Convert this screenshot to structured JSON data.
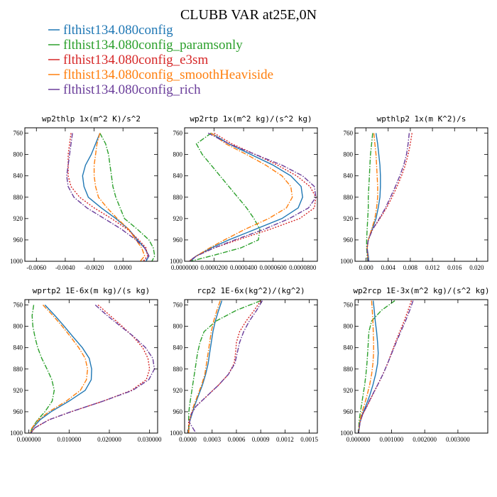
{
  "figure": {
    "title": "CLUBB VAR at25E,0N"
  },
  "legend": [
    {
      "label": "flthist134.080config",
      "color": "#1f77b4",
      "dash": "solid"
    },
    {
      "label": "flthist134.080config_paramsonly",
      "color": "#2ca02c",
      "dash": "dashdot"
    },
    {
      "label": "flthist134.080config_e3sm",
      "color": "#d62728",
      "dash": "dot"
    },
    {
      "label": "flthist134.080config_smoothHeaviside",
      "color": "#ff7f0e",
      "dash": "dashdot"
    },
    {
      "label": "flthist134.080config_rich",
      "color": "#6a3d9a",
      "dash": "dashdot"
    }
  ],
  "chart_data": [
    {
      "type": "line",
      "title": "wp2thlp  1x(m^2 K)/s^2",
      "xlim": [
        -0.0068,
        0.0024
      ],
      "ylim": [
        1000,
        750
      ],
      "xticks": [
        -0.006,
        -0.004,
        -0.002,
        0.0
      ],
      "xtick_labels": [
        "-0.0060",
        "-0.0040",
        "-0.0020",
        "0.0000"
      ],
      "yticks": [
        760,
        800,
        840,
        880,
        920,
        960,
        1000
      ],
      "y": [
        760,
        780,
        800,
        820,
        840,
        860,
        880,
        900,
        920,
        940,
        960,
        975,
        990,
        1000
      ],
      "series": [
        {
          "values": [
            -0.0016,
            -0.0019,
            -0.0022,
            -0.0026,
            -0.0028,
            -0.0027,
            -0.0024,
            -0.0015,
            -0.0005,
            0.0004,
            0.001,
            0.0015,
            0.0018,
            0.0016
          ]
        },
        {
          "values": [
            -0.0016,
            -0.0012,
            -0.001,
            -0.0009,
            -0.0008,
            -0.0007,
            -0.0005,
            -0.0002,
            0.0001,
            0.001,
            0.0018,
            0.0021,
            0.0022,
            0.002
          ]
        },
        {
          "values": [
            -0.0036,
            -0.0037,
            -0.0038,
            -0.0038,
            -0.0038,
            -0.0036,
            -0.003,
            -0.002,
            -0.0008,
            0.0003,
            0.0011,
            0.0016,
            0.0017,
            0.0014
          ]
        },
        {
          "values": [
            -0.0016,
            -0.0018,
            -0.0019,
            -0.002,
            -0.002,
            -0.0019,
            -0.0017,
            -0.0011,
            -0.0004,
            0.0004,
            0.0009,
            0.0013,
            0.0015,
            0.0012
          ]
        },
        {
          "values": [
            -0.0035,
            -0.0036,
            -0.0037,
            -0.0038,
            -0.0039,
            -0.0038,
            -0.0034,
            -0.0025,
            -0.0013,
            -0.0001,
            0.0009,
            0.0015,
            0.0018,
            0.0015
          ]
        }
      ]
    },
    {
      "type": "line",
      "title": "wp2rtp  1x(m^2 kg)/(s^2 kg)",
      "xlim": [
        0,
        9e-05
      ],
      "ylim": [
        1000,
        750
      ],
      "xticks": [
        0,
        2e-05,
        4e-05,
        6e-05,
        8e-05
      ],
      "xtick_labels": [
        "0.0000000",
        "0.0000200",
        "0.0000400",
        "0.0000600",
        "0.0000800"
      ],
      "yticks": [
        760,
        800,
        840,
        880,
        920,
        960,
        1000
      ],
      "y": [
        760,
        780,
        800,
        820,
        840,
        860,
        880,
        900,
        920,
        940,
        960,
        975,
        990,
        1000
      ],
      "series": [
        {
          "values": [
            1.8e-05,
            3e-05,
            4.5e-05,
            6e-05,
            7.2e-05,
            7.9e-05,
            8e-05,
            7.7e-05,
            6.6e-05,
            4.8e-05,
            3e-05,
            1.8e-05,
            8e-06,
            4e-06
          ]
        },
        {
          "values": [
            1.8e-05,
            8e-06,
            1.2e-05,
            1.8e-05,
            2.4e-05,
            3e-05,
            3.6e-05,
            4.2e-05,
            4.7e-05,
            5.1e-05,
            5e-05,
            3.8e-05,
            1.8e-05,
            4e-06
          ]
        },
        {
          "values": [
            2e-05,
            3.2e-05,
            4.8e-05,
            6.3e-05,
            7.6e-05,
            8.5e-05,
            8.9e-05,
            8.8e-05,
            7.8e-05,
            5.8e-05,
            3.6e-05,
            2e-05,
            8e-06,
            3e-06
          ]
        },
        {
          "values": [
            1.8e-05,
            2.8e-05,
            4.2e-05,
            5.5e-05,
            6.6e-05,
            7.2e-05,
            7.3e-05,
            6.9e-05,
            5.7e-05,
            4.1e-05,
            2.7e-05,
            1.7e-05,
            8e-06,
            3e-06
          ]
        },
        {
          "values": [
            1.6e-05,
            3e-05,
            4.8e-05,
            6.6e-05,
            8e-05,
            8.8e-05,
            8.9e-05,
            8.4e-05,
            7.1e-05,
            5.4e-05,
            3.4e-05,
            2e-05,
            8e-06,
            3e-06
          ]
        }
      ]
    },
    {
      "type": "line",
      "title": "wpthlp2  1x(m K^2)/s",
      "xlim": [
        -0.002,
        0.022
      ],
      "ylim": [
        1000,
        750
      ],
      "xticks": [
        0,
        0.004,
        0.008,
        0.012,
        0.016,
        0.02
      ],
      "xtick_labels": [
        "0.000",
        "0.004",
        "0.008",
        "0.012",
        "0.016",
        "0.020"
      ],
      "yticks": [
        760,
        800,
        840,
        880,
        920,
        960,
        1000
      ],
      "y": [
        760,
        780,
        800,
        820,
        840,
        860,
        880,
        900,
        920,
        940,
        960,
        975,
        990,
        1000
      ],
      "series": [
        {
          "values": [
            0.0018,
            0.0021,
            0.0023,
            0.0025,
            0.0026,
            0.0026,
            0.0025,
            0.0022,
            0.0018,
            0.0011,
            0.0004,
            0.0002,
            0.0004,
            0.0005
          ]
        },
        {
          "values": [
            0.0012,
            0.001,
            0.0008,
            0.0007,
            0.0006,
            0.0005,
            0.0004,
            0.0004,
            0.0003,
            0.0002,
            0.0001,
            0.0001,
            0.0002,
            0.0003
          ]
        },
        {
          "values": [
            0.0083,
            0.008,
            0.0076,
            0.0071,
            0.0064,
            0.0056,
            0.0047,
            0.0037,
            0.0025,
            0.0012,
            0.0004,
            0.0002,
            0.0003,
            0.0004
          ]
        },
        {
          "values": [
            0.0014,
            0.0016,
            0.0018,
            0.0019,
            0.002,
            0.0021,
            0.0021,
            0.0019,
            0.0016,
            0.001,
            0.0004,
            0.0002,
            0.0003,
            0.0004
          ]
        },
        {
          "values": [
            0.0078,
            0.0076,
            0.0073,
            0.0068,
            0.0061,
            0.0053,
            0.0044,
            0.0035,
            0.0024,
            0.0012,
            0.0004,
            0.0002,
            0.0003,
            0.0004
          ]
        }
      ]
    },
    {
      "type": "line",
      "title": "wprtp2  1E-6x(m kg)/(s kg)",
      "xlim": [
        -0.001,
        0.032
      ],
      "ylim": [
        1000,
        750
      ],
      "xticks": [
        0,
        0.01,
        0.02,
        0.03
      ],
      "xtick_labels": [
        "0.000000",
        "0.010000",
        "0.020000",
        "0.030000"
      ],
      "yticks": [
        760,
        800,
        840,
        880,
        920,
        960,
        1000
      ],
      "y": [
        760,
        780,
        800,
        820,
        840,
        860,
        880,
        900,
        920,
        940,
        960,
        975,
        990,
        1000
      ],
      "series": [
        {
          "values": [
            0.004,
            0.0065,
            0.0088,
            0.011,
            0.0133,
            0.015,
            0.0156,
            0.0155,
            0.014,
            0.01,
            0.0055,
            0.0028,
            0.001,
            0.0005
          ]
        },
        {
          "values": [
            0.0012,
            0.0008,
            0.001,
            0.0015,
            0.0022,
            0.0032,
            0.0045,
            0.0057,
            0.0063,
            0.0058,
            0.004,
            0.0022,
            0.0008,
            0.0004
          ]
        },
        {
          "values": [
            0.0172,
            0.0202,
            0.0232,
            0.026,
            0.0283,
            0.0296,
            0.03,
            0.0292,
            0.0255,
            0.0185,
            0.0105,
            0.005,
            0.0015,
            0.0005
          ]
        },
        {
          "values": [
            0.0035,
            0.006,
            0.0083,
            0.0104,
            0.0124,
            0.014,
            0.0146,
            0.0143,
            0.0128,
            0.0093,
            0.005,
            0.0024,
            0.0008,
            0.0003
          ]
        },
        {
          "values": [
            0.0165,
            0.0195,
            0.0228,
            0.0262,
            0.029,
            0.0308,
            0.0312,
            0.0298,
            0.0258,
            0.0185,
            0.0105,
            0.005,
            0.0015,
            0.0005
          ]
        }
      ]
    },
    {
      "type": "line",
      "title": "rcp2  1E-6x(kg^2)/(kg^2)",
      "xlim": [
        -4e-05,
        0.0016
      ],
      "ylim": [
        1000,
        750
      ],
      "xticks": [
        0,
        0.0003,
        0.0006,
        0.0009,
        0.0012,
        0.0015
      ],
      "xtick_labels": [
        "0.0000",
        "0.0003",
        "0.0006",
        "0.0009",
        "0.0012",
        "0.0015"
      ],
      "yticks": [
        760,
        800,
        840,
        880,
        920,
        960,
        1000
      ],
      "y": [
        752,
        770,
        790,
        810,
        830,
        850,
        870,
        890,
        910,
        930,
        950,
        965,
        980,
        1000
      ],
      "series": [
        {
          "values": [
            0.00042,
            0.00038,
            0.00034,
            0.00031,
            0.00029,
            0.00027,
            0.00025,
            0.00022,
            0.00018,
            0.00013,
            8e-05,
            5e-05,
            2e-05,
            1e-05
          ]
        },
        {
          "values": [
            0.0009,
            0.0006,
            0.00035,
            0.0002,
            0.00015,
            0.00012,
            0.0001,
            8e-05,
            6e-05,
            4e-05,
            2e-05,
            1e-05,
            1e-05,
            1e-05
          ]
        },
        {
          "values": [
            0.0009,
            0.00082,
            0.00072,
            0.00064,
            0.0006,
            0.00059,
            0.00057,
            0.0005,
            0.00038,
            0.00024,
            0.0001,
            4e-05,
            1e-05,
            1e-05
          ]
        },
        {
          "values": [
            0.0004,
            0.00036,
            0.00032,
            0.00029,
            0.00027,
            0.00025,
            0.00023,
            0.00021,
            0.00017,
            0.00012,
            7e-05,
            4e-05,
            2e-05,
            1e-05
          ]
        },
        {
          "values": [
            0.00092,
            0.00085,
            0.00076,
            0.00069,
            0.00064,
            0.00061,
            0.00058,
            0.0005,
            0.00038,
            0.00024,
            0.0001,
            4e-05,
            2e-05,
            0.0001
          ]
        }
      ]
    },
    {
      "type": "line",
      "title": "wp2rcp  1E-3x(m^2 kg)/(s^2 kg)",
      "xlim": [
        -0.0001,
        0.0039
      ],
      "ylim": [
        1000,
        750
      ],
      "xticks": [
        0,
        0.001,
        0.002,
        0.003
      ],
      "xtick_labels": [
        "0.000000",
        "0.001000",
        "0.002000",
        "0.003000"
      ],
      "yticks": [
        760,
        800,
        840,
        880,
        920,
        960,
        1000
      ],
      "y": [
        752,
        770,
        790,
        810,
        830,
        850,
        870,
        890,
        910,
        930,
        950,
        965,
        980,
        1000
      ],
      "series": [
        {
          "values": [
            0.00045,
            0.00048,
            0.00051,
            0.00055,
            0.00058,
            0.0006,
            0.00058,
            0.00052,
            0.00044,
            0.00034,
            0.00022,
            0.00012,
            5e-05,
            1e-05
          ]
        },
        {
          "values": [
            0.0011,
            0.0007,
            0.0004,
            0.00032,
            0.0003,
            0.00028,
            0.00026,
            0.00023,
            0.00019,
            0.00014,
            9e-05,
            5e-05,
            2e-05,
            1e-05
          ]
        },
        {
          "values": [
            0.0016,
            0.0015,
            0.00138,
            0.00125,
            0.00112,
            0.001,
            0.00088,
            0.00074,
            0.00058,
            0.00042,
            0.00026,
            0.00013,
            5e-05,
            1e-05
          ]
        },
        {
          "values": [
            0.0004,
            0.00042,
            0.00044,
            0.00045,
            0.00046,
            0.00046,
            0.00044,
            0.0004,
            0.00034,
            0.00026,
            0.00017,
            9e-05,
            4e-05,
            1e-05
          ]
        },
        {
          "values": [
            0.00165,
            0.00155,
            0.00142,
            0.00128,
            0.00114,
            0.00101,
            0.00088,
            0.00074,
            0.00058,
            0.00041,
            0.00025,
            0.00013,
            5e-05,
            1e-05
          ]
        }
      ]
    }
  ]
}
